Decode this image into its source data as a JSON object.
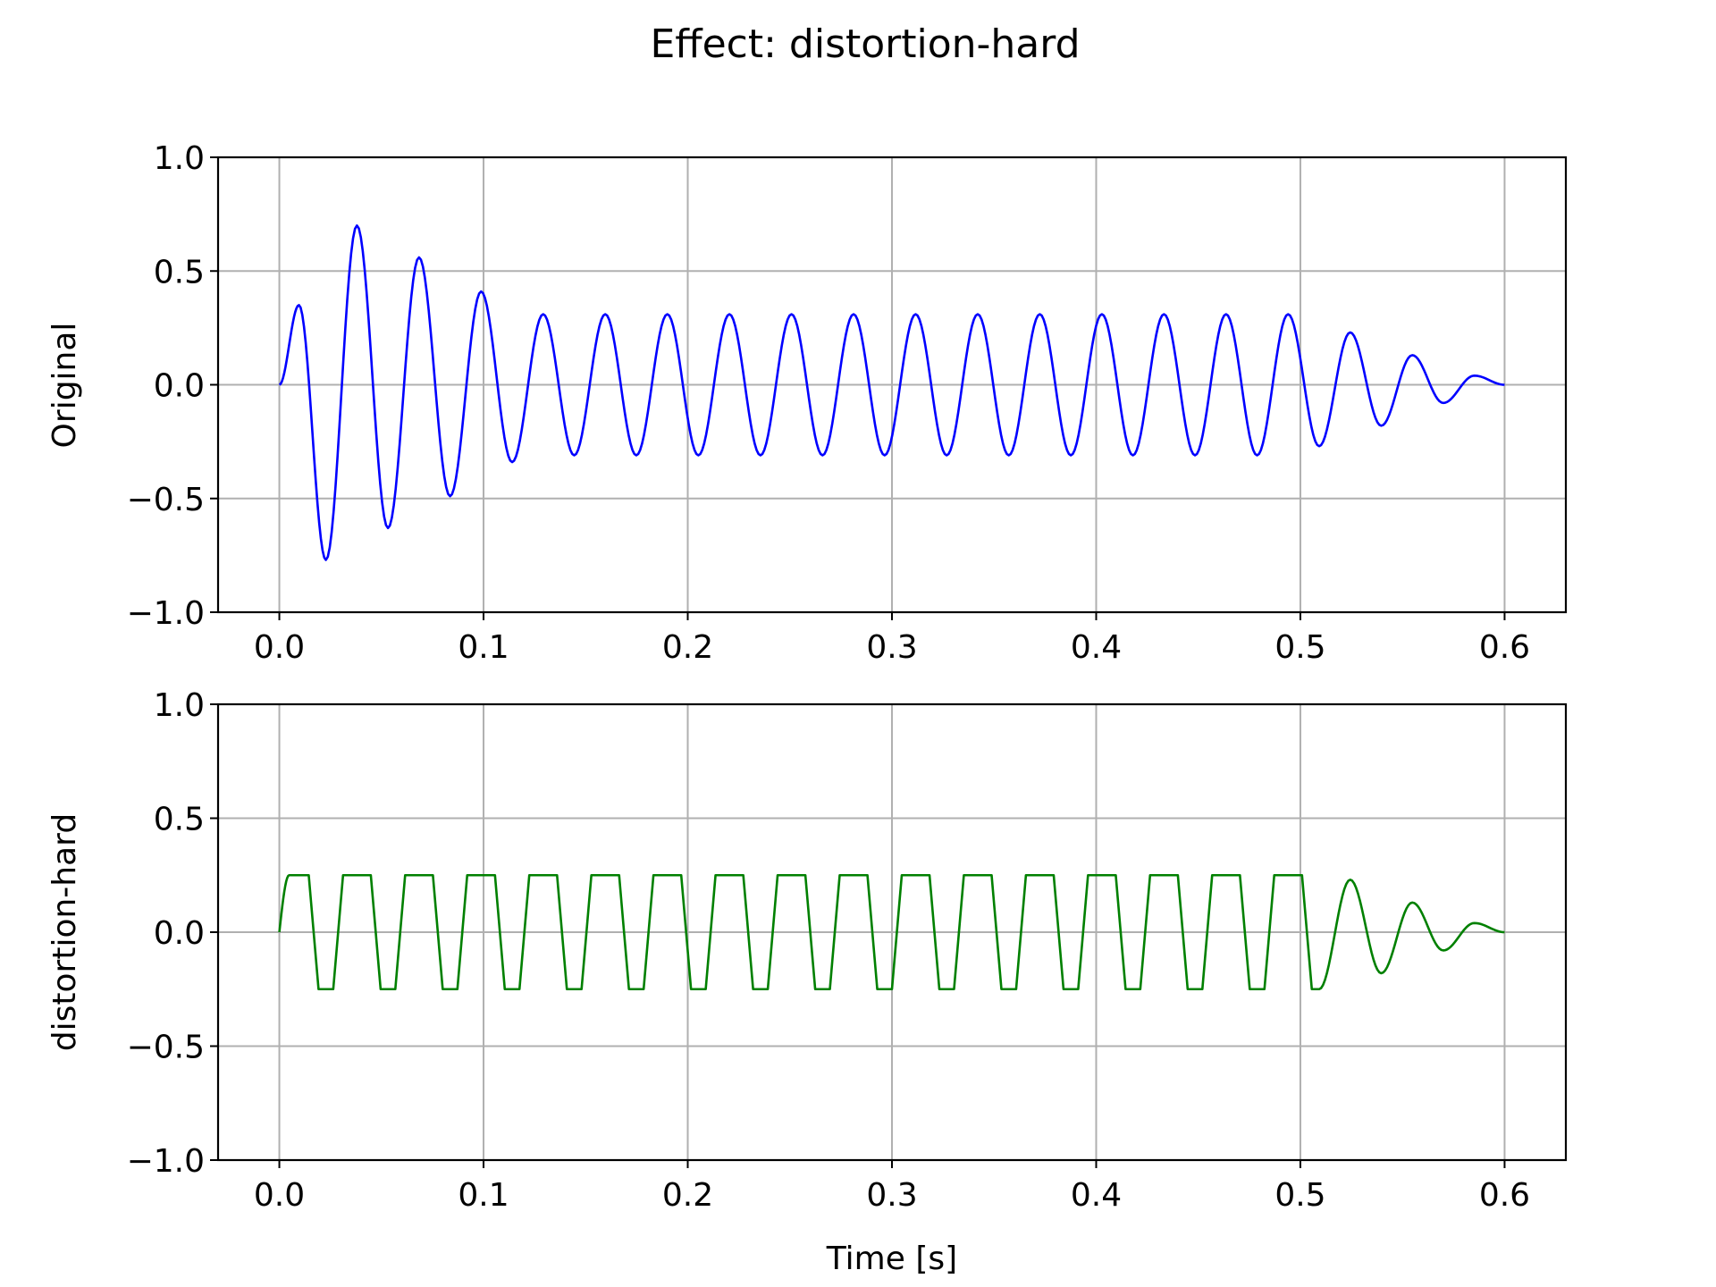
{
  "figure": {
    "title": "Effect: distortion-hard"
  },
  "chart_data": [
    {
      "type": "line",
      "panel": "top",
      "title": "",
      "xlabel": "",
      "ylabel": "Original",
      "xlim": [
        -0.03,
        0.63
      ],
      "ylim": [
        -1.0,
        1.0
      ],
      "xticks": [
        0.0,
        0.1,
        0.2,
        0.3,
        0.4,
        0.5,
        0.6
      ],
      "xtick_labels": [
        "0.0",
        "0.1",
        "0.2",
        "0.3",
        "0.4",
        "0.5",
        "0.6"
      ],
      "yticks": [
        1.0,
        0.5,
        0.0,
        -0.5,
        -1.0
      ],
      "ytick_labels": [
        "1.0",
        "0.5",
        "0.0",
        "−0.5",
        "−1.0"
      ],
      "grid": true,
      "series": [
        {
          "color": "#0000ff",
          "x": [
            0.0,
            0.0096,
            0.0228,
            0.038,
            0.0532,
            0.0684,
            0.0836,
            0.0988,
            0.114,
            0.1292,
            0.1444,
            0.1596,
            0.1748,
            0.19,
            0.2052,
            0.2204,
            0.2356,
            0.2508,
            0.266,
            0.2812,
            0.2964,
            0.3116,
            0.3268,
            0.342,
            0.3572,
            0.3724,
            0.3876,
            0.4028,
            0.418,
            0.4332,
            0.4484,
            0.4636,
            0.4788,
            0.494,
            0.5092,
            0.5244,
            0.5396,
            0.5548,
            0.57,
            0.5852,
            0.6
          ],
          "y": [
            0.0,
            0.35,
            -0.77,
            0.7,
            -0.63,
            0.56,
            -0.49,
            0.41,
            -0.34,
            0.31,
            -0.31,
            0.31,
            -0.31,
            0.31,
            -0.31,
            0.31,
            -0.31,
            0.31,
            -0.31,
            0.31,
            -0.31,
            0.31,
            -0.31,
            0.31,
            -0.31,
            0.31,
            -0.31,
            0.31,
            -0.31,
            0.31,
            -0.31,
            0.31,
            -0.31,
            0.31,
            -0.27,
            0.23,
            -0.18,
            0.13,
            -0.08,
            0.04,
            0.0
          ]
        }
      ]
    },
    {
      "type": "line",
      "panel": "bottom",
      "title": "",
      "xlabel": "Time [s]",
      "ylabel": "distortion-hard",
      "xlim": [
        -0.03,
        0.63
      ],
      "ylim": [
        -1.0,
        1.0
      ],
      "xticks": [
        0.0,
        0.1,
        0.2,
        0.3,
        0.4,
        0.5,
        0.6
      ],
      "xtick_labels": [
        "0.0",
        "0.1",
        "0.2",
        "0.3",
        "0.4",
        "0.5",
        "0.6"
      ],
      "yticks": [
        1.0,
        0.5,
        0.0,
        -0.5,
        -1.0
      ],
      "ytick_labels": [
        "1.0",
        "0.5",
        "0.0",
        "−0.5",
        "−1.0"
      ],
      "grid": true,
      "series": [
        {
          "color": "#008000",
          "x": [
            0.0,
            0.0048,
            0.0096,
            0.0144,
            0.0192,
            0.0228,
            0.0264,
            0.0312,
            0.038,
            0.0448,
            0.0496,
            0.0532,
            0.0568,
            0.0616,
            0.0684,
            0.0752,
            0.08,
            0.0836,
            0.0872,
            0.092,
            0.0988,
            0.1056,
            0.1104,
            0.114,
            0.1176,
            0.1224,
            0.1292,
            0.136,
            0.1408,
            0.1444,
            0.148,
            0.1528,
            0.1596,
            0.1664,
            0.1712,
            0.1748,
            0.1784,
            0.1832,
            0.19,
            0.1968,
            0.2016,
            0.2052,
            0.2088,
            0.2136,
            0.2204,
            0.2272,
            0.232,
            0.2356,
            0.2392,
            0.244,
            0.2508,
            0.2576,
            0.2624,
            0.266,
            0.2696,
            0.2744,
            0.2812,
            0.288,
            0.2928,
            0.2964,
            0.3,
            0.3048,
            0.3116,
            0.3184,
            0.3232,
            0.3268,
            0.3304,
            0.3352,
            0.342,
            0.3488,
            0.3536,
            0.3572,
            0.3608,
            0.3656,
            0.3724,
            0.3792,
            0.384,
            0.3876,
            0.3912,
            0.396,
            0.4028,
            0.4096,
            0.4144,
            0.418,
            0.4216,
            0.4264,
            0.4332,
            0.44,
            0.4448,
            0.4484,
            0.452,
            0.4568,
            0.4636,
            0.4704,
            0.4752,
            0.4788,
            0.4824,
            0.4872,
            0.494,
            0.5008,
            0.5056,
            0.5092,
            0.5244,
            0.5396,
            0.5548,
            0.57,
            0.5852,
            0.6
          ],
          "y": [
            0.0,
            0.25,
            0.25,
            0.25,
            -0.25,
            -0.25,
            -0.25,
            0.25,
            0.25,
            0.25,
            -0.25,
            -0.25,
            -0.25,
            0.25,
            0.25,
            0.25,
            -0.25,
            -0.25,
            -0.25,
            0.25,
            0.25,
            0.25,
            -0.25,
            -0.25,
            -0.25,
            0.25,
            0.25,
            0.25,
            -0.25,
            -0.25,
            -0.25,
            0.25,
            0.25,
            0.25,
            -0.25,
            -0.25,
            -0.25,
            0.25,
            0.25,
            0.25,
            -0.25,
            -0.25,
            -0.25,
            0.25,
            0.25,
            0.25,
            -0.25,
            -0.25,
            -0.25,
            0.25,
            0.25,
            0.25,
            -0.25,
            -0.25,
            -0.25,
            0.25,
            0.25,
            0.25,
            -0.25,
            -0.25,
            -0.25,
            0.25,
            0.25,
            0.25,
            -0.25,
            -0.25,
            -0.25,
            0.25,
            0.25,
            0.25,
            -0.25,
            -0.25,
            -0.25,
            0.25,
            0.25,
            0.25,
            -0.25,
            -0.25,
            -0.25,
            0.25,
            0.25,
            0.25,
            -0.25,
            -0.25,
            -0.25,
            0.25,
            0.25,
            0.25,
            -0.25,
            -0.25,
            -0.25,
            0.25,
            0.25,
            0.25,
            -0.25,
            -0.25,
            -0.25,
            0.25,
            0.25,
            0.25,
            -0.25,
            -0.25,
            0.23,
            -0.18,
            0.13,
            -0.08,
            0.04,
            0.0
          ]
        }
      ]
    }
  ]
}
